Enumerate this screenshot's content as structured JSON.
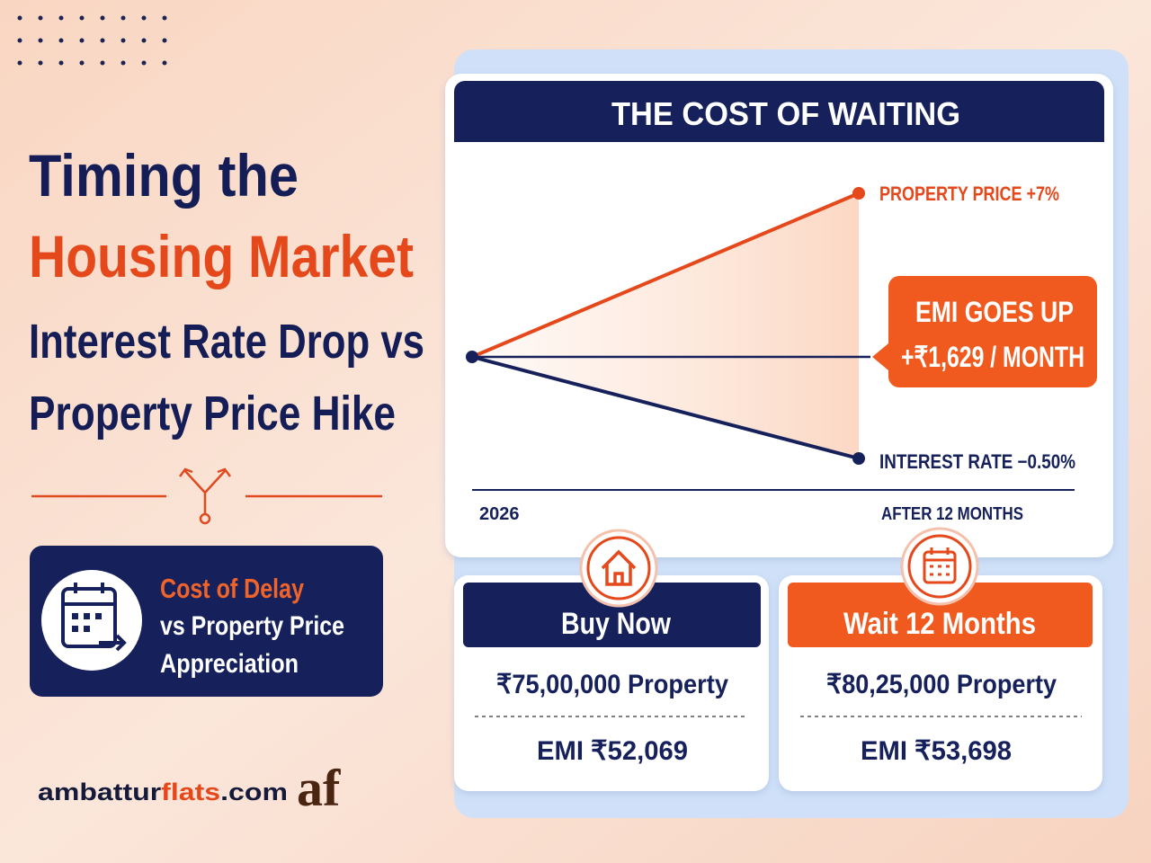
{
  "headline": {
    "line1": "Timing the",
    "line2": "Housing Market",
    "line3": "Interest Rate Drop vs",
    "line4": "Property Price Hike"
  },
  "badge": {
    "highlight": "Cost of Delay",
    "line2": "vs Property Price",
    "line3": "Appreciation"
  },
  "brand": {
    "prefix": "ambattur",
    "accent": "flats",
    "suffix": ".com",
    "logo": "af"
  },
  "panel": {
    "title": "THE COST OF WAITING",
    "price_label": "PROPERTY PRICE +7%",
    "rate_label": "INTEREST RATE −0.50%",
    "callout_line1": "EMI GOES UP",
    "callout_line2": "+₹1,629 / MONTH",
    "x_start": "2026",
    "x_end": "AFTER 12 MONTHS"
  },
  "cards": [
    {
      "title": "Buy Now",
      "price": "₹75,00,000 Property",
      "emi": "EMI ₹52,069"
    },
    {
      "title": "Wait 12 Months",
      "price": "₹80,25,000 Property",
      "emi": "EMI ₹53,698"
    }
  ]
}
